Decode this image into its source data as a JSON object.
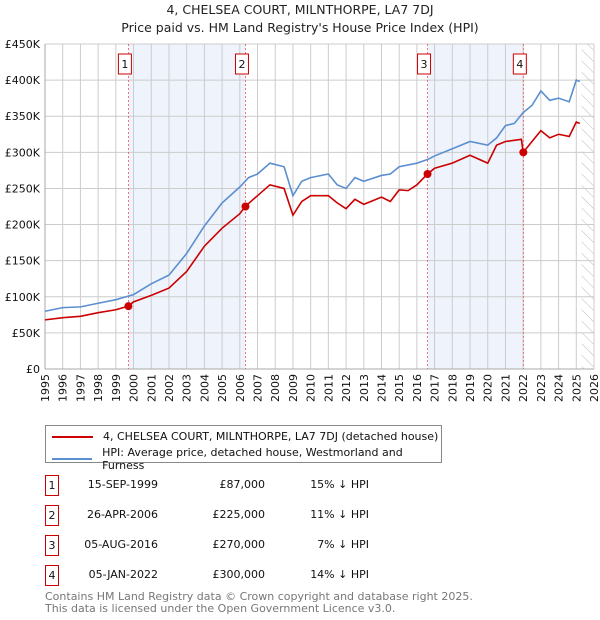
{
  "chart_data": {
    "type": "line",
    "title": "4, CHELSEA COURT, MILNTHORPE, LA7 7DJ",
    "subtitle": "Price paid vs. HM Land Registry's House Price Index (HPI)",
    "xlim": [
      1995,
      2026
    ],
    "ylim": [
      0,
      450000
    ],
    "x_ticks": [
      "1995",
      "1996",
      "1997",
      "1998",
      "1999",
      "2000",
      "2001",
      "2002",
      "2003",
      "2004",
      "2005",
      "2006",
      "2007",
      "2008",
      "2009",
      "2010",
      "2011",
      "2012",
      "2013",
      "2014",
      "2015",
      "2016",
      "2017",
      "2018",
      "2019",
      "2020",
      "2021",
      "2022",
      "2023",
      "2024",
      "2025",
      "2026"
    ],
    "y_ticks": [
      {
        "v": 0,
        "label": "£0"
      },
      {
        "v": 50000,
        "label": "£50K"
      },
      {
        "v": 100000,
        "label": "£100K"
      },
      {
        "v": 150000,
        "label": "£150K"
      },
      {
        "v": 200000,
        "label": "£200K"
      },
      {
        "v": 250000,
        "label": "£250K"
      },
      {
        "v": 300000,
        "label": "£300K"
      },
      {
        "v": 350000,
        "label": "£350K"
      },
      {
        "v": 400000,
        "label": "£400K"
      },
      {
        "v": 450000,
        "label": "£450K"
      }
    ],
    "grid": true,
    "series": [
      {
        "name": "4, CHELSEA COURT, MILNTHORPE, LA7 7DJ (detached house)",
        "color": "#cc0000",
        "x": [
          1995,
          1996,
          1997,
          1998,
          1999,
          1999.7,
          2000,
          2001,
          2002,
          2003,
          2004,
          2005,
          2006,
          2006.3,
          2007,
          2007.7,
          2008.5,
          2009,
          2009.5,
          2010,
          2011,
          2011.5,
          2012,
          2012.5,
          2013,
          2014,
          2014.5,
          2015,
          2015.5,
          2016,
          2016.6,
          2017,
          2018,
          2019,
          2020,
          2020.5,
          2021,
          2021.9,
          2022,
          2022.5,
          2023,
          2023.5,
          2024,
          2024.6,
          2025,
          2025.2
        ],
        "y": [
          68000,
          71000,
          73000,
          78000,
          82000,
          87000,
          93000,
          102000,
          112000,
          135000,
          170000,
          195000,
          215000,
          225000,
          240000,
          255000,
          250000,
          213000,
          232000,
          240000,
          240000,
          230000,
          222000,
          235000,
          228000,
          238000,
          232000,
          248000,
          247000,
          255000,
          270000,
          278000,
          285000,
          296000,
          285000,
          310000,
          315000,
          318000,
          300000,
          315000,
          330000,
          320000,
          325000,
          322000,
          342000,
          340000
        ]
      },
      {
        "name": "HPI: Average price, detached house, Westmorland and Furness",
        "color": "#5b8fd0",
        "x": [
          1995,
          1996,
          1997,
          1998,
          1999,
          2000,
          2001,
          2002,
          2003,
          2004,
          2005,
          2006,
          2006.5,
          2007,
          2007.7,
          2008.5,
          2009,
          2009.5,
          2010,
          2011,
          2011.5,
          2012,
          2012.5,
          2013,
          2014,
          2014.5,
          2015,
          2016,
          2016.6,
          2017,
          2018,
          2019,
          2020,
          2020.5,
          2021,
          2021.5,
          2022,
          2022.5,
          2023,
          2023.5,
          2024,
          2024.6,
          2025,
          2025.2
        ],
        "y": [
          80000,
          85000,
          86000,
          91000,
          96000,
          103000,
          118000,
          130000,
          160000,
          198000,
          230000,
          252000,
          265000,
          270000,
          285000,
          280000,
          240000,
          260000,
          265000,
          270000,
          255000,
          250000,
          265000,
          260000,
          268000,
          270000,
          280000,
          285000,
          290000,
          295000,
          305000,
          315000,
          310000,
          320000,
          337000,
          340000,
          355000,
          365000,
          385000,
          372000,
          375000,
          370000,
          400000,
          398000
        ]
      }
    ],
    "sales": [
      {
        "id": "1",
        "x": 1999.71,
        "price": 87000,
        "date": "15-SEP-1999",
        "price_label": "£87,000",
        "hpi": "15% ↓ HPI"
      },
      {
        "id": "2",
        "x": 2006.32,
        "price": 225000,
        "date": "26-APR-2006",
        "price_label": "£225,000",
        "hpi": "11% ↓ HPI"
      },
      {
        "id": "3",
        "x": 2016.6,
        "price": 270000,
        "date": "05-AUG-2016",
        "price_label": "£270,000",
        "hpi": "7% ↓ HPI"
      },
      {
        "id": "4",
        "x": 2022.01,
        "price": 300000,
        "date": "05-JAN-2022",
        "price_label": "£300,000",
        "hpi": "14% ↓ HPI"
      }
    ],
    "shaded_ranges": [
      [
        1999.71,
        2006.32
      ],
      [
        2016.6,
        2022.01
      ]
    ],
    "forecast_hatch_from": 2025.3,
    "legend_placement": "below"
  },
  "footer": [
    "Contains HM Land Registry data © Crown copyright and database right 2025.",
    "This data is licensed under the Open Government Licence v3.0."
  ]
}
